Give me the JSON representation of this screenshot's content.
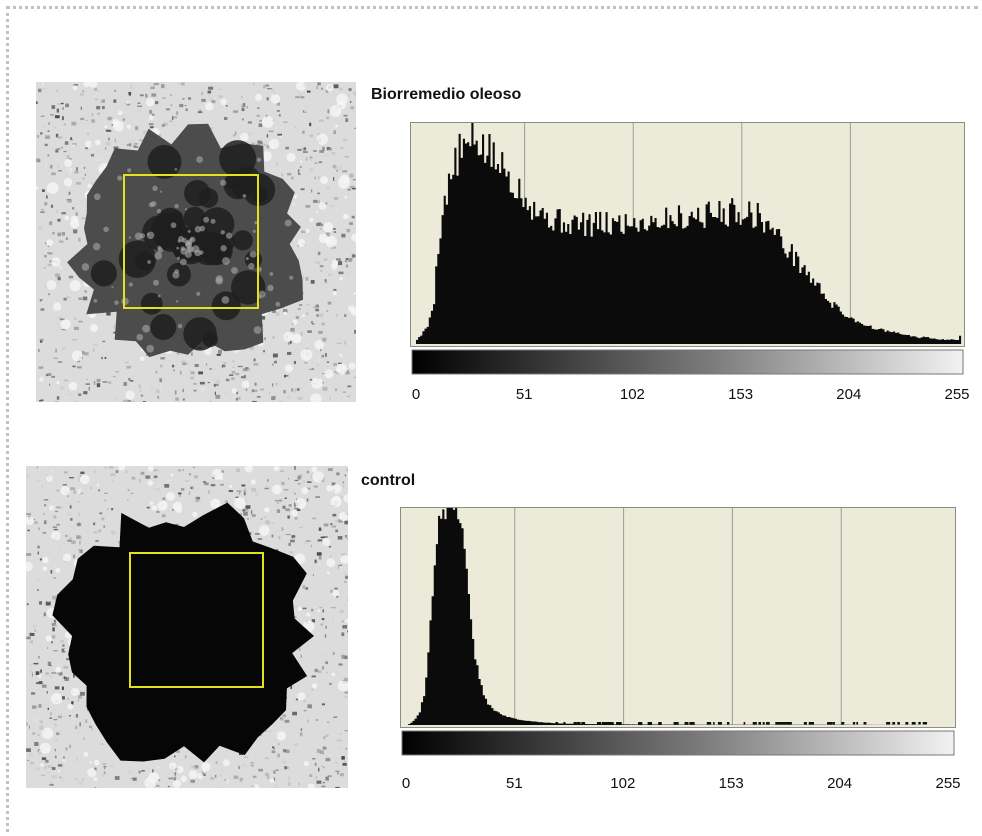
{
  "figure": {
    "panels": [
      {
        "title": "Biorremedio oleoso"
      },
      {
        "title": "control"
      }
    ]
  },
  "chart_data": [
    {
      "type": "bar",
      "title": "Biorremedio oleoso",
      "xlabel": "",
      "ylabel": "",
      "xlim": [
        0,
        255
      ],
      "ylim": [
        0,
        100
      ],
      "grid": true,
      "x_ticks": [
        "0",
        "51",
        "102",
        "153",
        "204",
        "255"
      ],
      "profile_x": [
        0,
        2,
        5,
        8,
        10,
        13,
        16,
        18,
        20,
        22,
        25,
        28,
        32,
        36,
        40,
        45,
        50,
        55,
        60,
        65,
        70,
        80,
        90,
        100,
        110,
        120,
        130,
        140,
        150,
        155,
        160,
        165,
        170,
        175,
        180,
        185,
        190,
        195,
        200,
        205,
        210,
        215,
        220,
        225,
        230,
        235,
        240,
        245,
        250,
        254,
        255
      ],
      "profile_y": [
        2,
        4,
        8,
        20,
        45,
        65,
        75,
        82,
        86,
        88,
        90,
        92,
        88,
        84,
        80,
        74,
        68,
        62,
        58,
        56,
        55,
        54,
        54,
        55,
        56,
        57,
        58,
        59,
        60,
        60,
        58,
        54,
        48,
        42,
        36,
        30,
        24,
        18,
        14,
        11,
        9,
        7,
        6,
        5,
        4,
        3,
        3,
        2,
        2,
        2,
        4
      ]
    },
    {
      "type": "bar",
      "title": "control",
      "xlabel": "",
      "ylabel": "",
      "xlim": [
        0,
        255
      ],
      "ylim": [
        0,
        100
      ],
      "grid": true,
      "x_ticks": [
        "0",
        "51",
        "102",
        "153",
        "204",
        "255"
      ],
      "profile_x": [
        0,
        2,
        4,
        6,
        8,
        10,
        12,
        14,
        16,
        18,
        20,
        22,
        24,
        26,
        28,
        30,
        32,
        34,
        36,
        38,
        40,
        44,
        48,
        52,
        56,
        60,
        65,
        70,
        75,
        80,
        90,
        100,
        120,
        150,
        200,
        255
      ],
      "profile_y": [
        0,
        1,
        3,
        6,
        14,
        32,
        60,
        88,
        100,
        100,
        100,
        100,
        100,
        92,
        70,
        48,
        32,
        21,
        14,
        10,
        7.5,
        5,
        3.5,
        2.5,
        2,
        1.5,
        1.1,
        0.8,
        0.6,
        0.5,
        0.4,
        0.3,
        0.2,
        0.1,
        0.1,
        0
      ]
    }
  ]
}
